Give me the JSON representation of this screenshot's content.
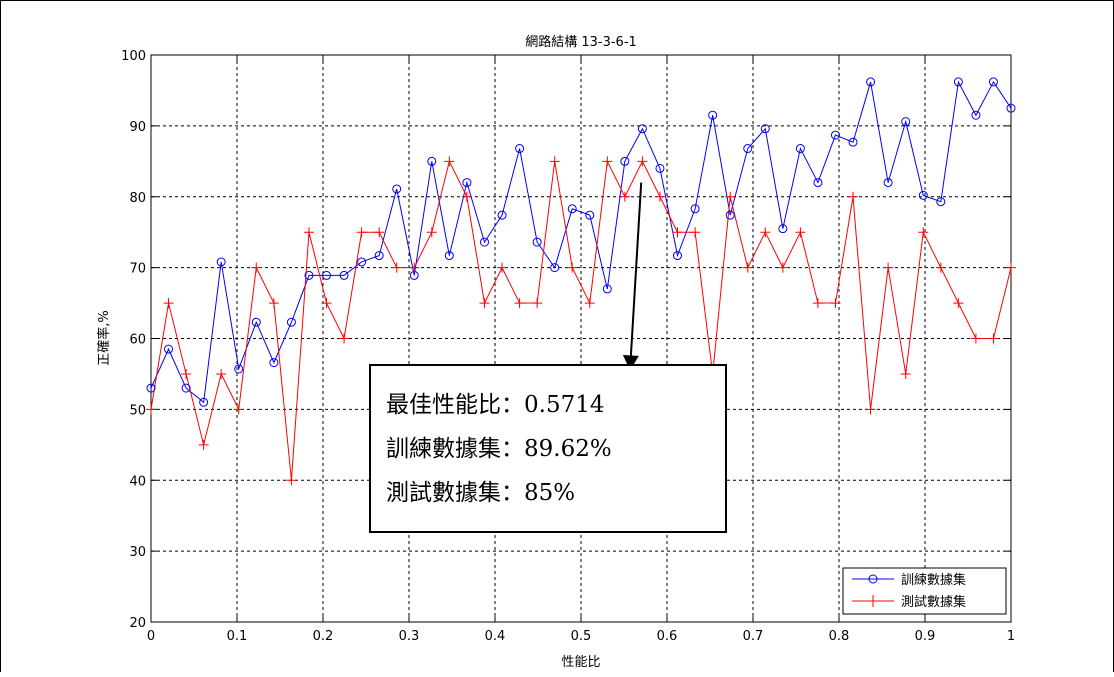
{
  "chart_data": {
    "type": "line",
    "title": "網路結構 13-3-6-1",
    "xlabel": "性能比",
    "ylabel": "正確率,%",
    "xlim": [
      0,
      1
    ],
    "ylim": [
      20,
      100
    ],
    "xticks": [
      0,
      0.1,
      0.2,
      0.3,
      0.4,
      0.5,
      0.6,
      0.7,
      0.8,
      0.9,
      1
    ],
    "xtick_labels": [
      "0",
      "0.1",
      "0.2",
      "0.3",
      "0.4",
      "0.5",
      "0.6",
      "0.7",
      "0.8",
      "0.9",
      "1"
    ],
    "yticks": [
      20,
      30,
      40,
      50,
      60,
      70,
      80,
      90,
      100
    ],
    "grid": true,
    "legend_position": "bottom-right",
    "x": [
      0,
      0.0204,
      0.0408,
      0.0612,
      0.0816,
      0.102,
      0.1224,
      0.1429,
      0.1633,
      0.1837,
      0.2041,
      0.2245,
      0.2449,
      0.2653,
      0.2857,
      0.3061,
      0.3265,
      0.3469,
      0.3673,
      0.3878,
      0.4082,
      0.4286,
      0.449,
      0.4694,
      0.4898,
      0.5102,
      0.5306,
      0.551,
      0.5714,
      0.5918,
      0.6122,
      0.6327,
      0.6531,
      0.6735,
      0.6939,
      0.7143,
      0.7347,
      0.7551,
      0.7755,
      0.7959,
      0.8163,
      0.8367,
      0.8571,
      0.8776,
      0.898,
      0.9184,
      0.9388,
      0.9592,
      0.9796,
      1
    ],
    "series": [
      {
        "name": "訓練數據集",
        "color": "#0000ff",
        "marker": "circle",
        "values": [
          53,
          58.5,
          53,
          51,
          70.8,
          55.7,
          62.3,
          56.6,
          62.3,
          68.9,
          68.9,
          68.9,
          70.8,
          71.7,
          81.1,
          68.9,
          85,
          71.7,
          82,
          73.6,
          77.4,
          86.8,
          73.6,
          70,
          78.3,
          77.4,
          67,
          85,
          89.6,
          84,
          71.7,
          78.3,
          91.5,
          77.4,
          86.8,
          89.6,
          75.5,
          86.8,
          82,
          88.7,
          87.7,
          96.2,
          82,
          90.6,
          80.2,
          79.3,
          96.2,
          91.5,
          96.2,
          92.5
        ]
      },
      {
        "name": "測試數據集",
        "color": "#ff0000",
        "marker": "plus",
        "values": [
          50,
          65,
          55,
          45,
          55,
          50,
          70,
          65,
          40,
          75,
          65,
          60,
          75,
          75,
          70,
          70,
          75,
          85,
          80,
          65,
          70,
          65,
          65,
          85,
          70,
          65,
          85,
          80,
          85,
          80,
          75,
          75,
          55,
          80,
          70,
          75,
          70,
          75,
          65,
          65,
          80,
          50,
          70,
          55,
          75,
          70,
          65,
          60,
          60,
          70
        ]
      }
    ],
    "annotation": {
      "lines": [
        "最佳性能比：0.5714",
        "訓練數據集：89.62%",
        "測試數據集：85%"
      ],
      "arrow_from": [
        0.57,
        82
      ],
      "arrow_to": [
        0.557,
        55.5
      ]
    }
  }
}
